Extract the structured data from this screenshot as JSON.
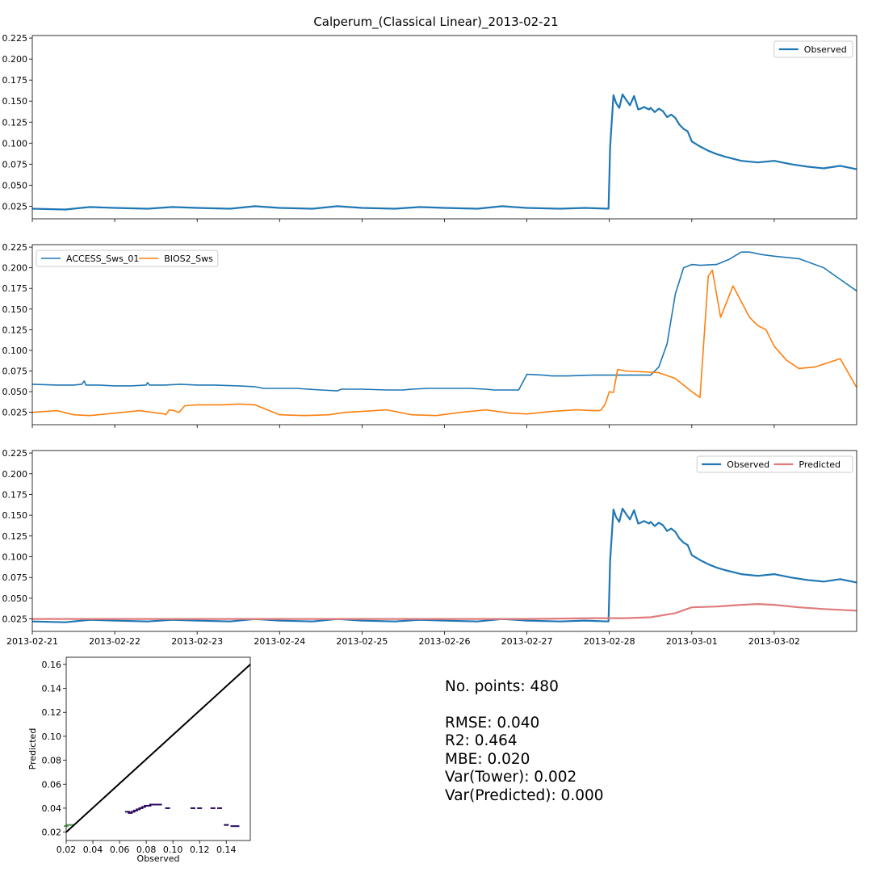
{
  "figure": {
    "title": "Calperum_(Classical Linear)_2013-02-21"
  },
  "colors": {
    "observed": "#1f77b4",
    "access": "#1f77b4",
    "bios2": "#ff7f0e",
    "predicted": "#e07b7b",
    "one_to_one": "#000000",
    "scatter": "#2a0a5e"
  },
  "stats": {
    "n_points": "No. points: 480",
    "rmse": "RMSE: 0.040",
    "r2": "R2: 0.464",
    "mbe": "MBE: 0.020",
    "var_tower": "Var(Tower): 0.002",
    "var_predicted": "Var(Predicted): 0.000"
  },
  "chart_data": [
    {
      "type": "line",
      "ylim": [
        0.01,
        0.228
      ],
      "yticks": [
        "0.025",
        "0.050",
        "0.075",
        "0.100",
        "0.125",
        "0.150",
        "0.175",
        "0.200",
        "0.225"
      ],
      "x_range_days": [
        0,
        10
      ],
      "legend": "top-right",
      "series": [
        {
          "name": "Observed",
          "color_key": "observed",
          "x": [
            0,
            0.4,
            0.7,
            1.0,
            1.4,
            1.7,
            2.0,
            2.4,
            2.7,
            3.0,
            3.4,
            3.7,
            4.0,
            4.4,
            4.7,
            5.0,
            5.4,
            5.7,
            6.0,
            6.4,
            6.7,
            6.99,
            7.01,
            7.05,
            7.08,
            7.12,
            7.16,
            7.2,
            7.25,
            7.3,
            7.35,
            7.38,
            7.42,
            7.48,
            7.5,
            7.55,
            7.6,
            7.65,
            7.7,
            7.75,
            7.8,
            7.85,
            7.9,
            7.95,
            8.0,
            8.05,
            8.1,
            8.2,
            8.3,
            8.4,
            8.6,
            8.8,
            9.0,
            9.2,
            9.4,
            9.6,
            9.8,
            10.0
          ],
          "y": [
            0.022,
            0.021,
            0.024,
            0.023,
            0.022,
            0.024,
            0.023,
            0.022,
            0.025,
            0.023,
            0.022,
            0.025,
            0.023,
            0.022,
            0.024,
            0.023,
            0.022,
            0.025,
            0.023,
            0.022,
            0.023,
            0.022,
            0.096,
            0.157,
            0.148,
            0.142,
            0.158,
            0.152,
            0.145,
            0.156,
            0.14,
            0.141,
            0.143,
            0.14,
            0.142,
            0.137,
            0.141,
            0.138,
            0.131,
            0.134,
            0.13,
            0.122,
            0.117,
            0.114,
            0.102,
            0.099,
            0.096,
            0.091,
            0.087,
            0.084,
            0.079,
            0.077,
            0.079,
            0.075,
            0.072,
            0.07,
            0.073,
            0.069
          ]
        }
      ]
    },
    {
      "type": "line",
      "ylim": [
        0.01,
        0.228
      ],
      "yticks": [
        "0.025",
        "0.050",
        "0.075",
        "0.100",
        "0.125",
        "0.150",
        "0.175",
        "0.200",
        "0.225"
      ],
      "x_range_days": [
        0,
        10
      ],
      "legend": "top-left",
      "series": [
        {
          "name": "ACCESS_Sws_01",
          "color_key": "access",
          "x": [
            0,
            0.3,
            0.5,
            0.6,
            0.63,
            0.65,
            0.8,
            1.0,
            1.2,
            1.38,
            1.4,
            1.42,
            1.6,
            1.8,
            2.0,
            2.2,
            2.5,
            2.7,
            2.8,
            2.85,
            3.0,
            3.2,
            3.5,
            3.7,
            3.75,
            4.0,
            4.3,
            4.5,
            4.6,
            4.8,
            5.0,
            5.3,
            5.5,
            5.6,
            5.9,
            6.0,
            6.2,
            6.3,
            6.5,
            6.8,
            6.92,
            7.2,
            7.35,
            7.5,
            7.6,
            7.7,
            7.8,
            7.9,
            8.0,
            8.1,
            8.3,
            8.45,
            8.6,
            8.7,
            8.85,
            9.0,
            9.3,
            9.6,
            9.8,
            10.0
          ],
          "y": [
            0.059,
            0.058,
            0.058,
            0.059,
            0.063,
            0.058,
            0.058,
            0.057,
            0.057,
            0.058,
            0.061,
            0.058,
            0.058,
            0.059,
            0.058,
            0.058,
            0.057,
            0.056,
            0.054,
            0.054,
            0.054,
            0.054,
            0.052,
            0.051,
            0.053,
            0.053,
            0.052,
            0.052,
            0.053,
            0.054,
            0.054,
            0.054,
            0.053,
            0.052,
            0.052,
            0.071,
            0.07,
            0.069,
            0.069,
            0.07,
            0.07,
            0.07,
            0.07,
            0.07,
            0.08,
            0.108,
            0.168,
            0.2,
            0.204,
            0.203,
            0.204,
            0.21,
            0.219,
            0.219,
            0.216,
            0.214,
            0.211,
            0.2,
            0.186,
            0.172
          ]
        },
        {
          "name": "BIOS2_Sws",
          "color_key": "bios2",
          "x": [
            0,
            0.3,
            0.5,
            0.7,
            1.0,
            1.3,
            1.6,
            1.62,
            1.66,
            1.72,
            1.78,
            1.85,
            2.0,
            2.3,
            2.5,
            2.7,
            3.0,
            3.3,
            3.6,
            3.8,
            4.0,
            4.3,
            4.6,
            4.9,
            5.2,
            5.5,
            5.8,
            6.0,
            6.3,
            6.6,
            6.8,
            6.88,
            6.9,
            6.95,
            7.0,
            7.05,
            7.1,
            7.2,
            7.4,
            7.6,
            7.8,
            8.0,
            8.1,
            8.2,
            8.25,
            8.35,
            8.5,
            8.7,
            8.8,
            8.9,
            9.0,
            9.15,
            9.3,
            9.5,
            9.8,
            10.0
          ],
          "y": [
            0.025,
            0.027,
            0.022,
            0.021,
            0.024,
            0.027,
            0.023,
            0.022,
            0.028,
            0.027,
            0.025,
            0.033,
            0.034,
            0.034,
            0.035,
            0.034,
            0.022,
            0.021,
            0.022,
            0.025,
            0.026,
            0.028,
            0.022,
            0.021,
            0.025,
            0.028,
            0.024,
            0.023,
            0.026,
            0.028,
            0.027,
            0.027,
            0.028,
            0.035,
            0.05,
            0.049,
            0.077,
            0.075,
            0.074,
            0.073,
            0.066,
            0.05,
            0.043,
            0.19,
            0.197,
            0.14,
            0.178,
            0.14,
            0.13,
            0.125,
            0.105,
            0.088,
            0.078,
            0.08,
            0.09,
            0.055
          ]
        }
      ]
    },
    {
      "type": "line",
      "ylim": [
        0.01,
        0.228
      ],
      "yticks": [
        "0.025",
        "0.050",
        "0.075",
        "0.100",
        "0.125",
        "0.150",
        "0.175",
        "0.200",
        "0.225"
      ],
      "x_range_days": [
        0,
        10
      ],
      "xticks": [
        "2013-02-21",
        "2013-02-22",
        "2013-02-23",
        "2013-02-24",
        "2013-02-25",
        "2013-02-26",
        "2013-02-27",
        "2013-02-28",
        "2013-03-01",
        "2013-03-02"
      ],
      "legend": "top-right",
      "series": [
        {
          "name": "Observed",
          "color_key": "observed",
          "x": [
            0,
            0.4,
            0.7,
            1.0,
            1.4,
            1.7,
            2.0,
            2.4,
            2.7,
            3.0,
            3.4,
            3.7,
            4.0,
            4.4,
            4.7,
            5.0,
            5.4,
            5.7,
            6.0,
            6.4,
            6.7,
            6.99,
            7.01,
            7.05,
            7.08,
            7.12,
            7.16,
            7.2,
            7.25,
            7.3,
            7.35,
            7.38,
            7.42,
            7.48,
            7.5,
            7.55,
            7.6,
            7.65,
            7.7,
            7.75,
            7.8,
            7.85,
            7.9,
            7.95,
            8.0,
            8.05,
            8.1,
            8.2,
            8.3,
            8.4,
            8.6,
            8.8,
            9.0,
            9.2,
            9.4,
            9.6,
            9.8,
            10.0
          ],
          "y": [
            0.022,
            0.021,
            0.024,
            0.023,
            0.022,
            0.024,
            0.023,
            0.022,
            0.025,
            0.023,
            0.022,
            0.025,
            0.023,
            0.022,
            0.024,
            0.023,
            0.022,
            0.025,
            0.023,
            0.022,
            0.023,
            0.022,
            0.096,
            0.157,
            0.148,
            0.142,
            0.158,
            0.152,
            0.145,
            0.156,
            0.14,
            0.141,
            0.143,
            0.14,
            0.142,
            0.137,
            0.141,
            0.138,
            0.131,
            0.134,
            0.13,
            0.122,
            0.117,
            0.114,
            0.102,
            0.099,
            0.096,
            0.091,
            0.087,
            0.084,
            0.079,
            0.077,
            0.079,
            0.075,
            0.072,
            0.07,
            0.073,
            0.069
          ]
        },
        {
          "name": "Predicted",
          "color_key": "predicted",
          "x": [
            0,
            1,
            2,
            3,
            4,
            5,
            6,
            6.8,
            7.2,
            7.5,
            7.8,
            8.0,
            8.3,
            8.6,
            8.8,
            9.0,
            9.3,
            9.6,
            10.0
          ],
          "y": [
            0.025,
            0.025,
            0.025,
            0.025,
            0.025,
            0.025,
            0.025,
            0.026,
            0.026,
            0.027,
            0.032,
            0.039,
            0.04,
            0.042,
            0.043,
            0.042,
            0.039,
            0.037,
            0.035
          ]
        }
      ]
    },
    {
      "type": "scatter",
      "xlabel": "Observed",
      "ylabel": "Predicted",
      "xlim": [
        0.02,
        0.158
      ],
      "ylim": [
        0.013,
        0.166
      ],
      "xticks": [
        "0.02",
        "0.04",
        "0.06",
        "0.08",
        "0.10",
        "0.12",
        "0.14"
      ],
      "yticks": [
        "0.02",
        "0.04",
        "0.06",
        "0.08",
        "0.10",
        "0.12",
        "0.14",
        "0.16"
      ],
      "one_to_one": [
        [
          0.02,
          0.02
        ],
        [
          0.158,
          0.16
        ]
      ],
      "points": {
        "x": [
          0.02,
          0.022,
          0.024,
          0.066,
          0.068,
          0.07,
          0.072,
          0.074,
          0.076,
          0.078,
          0.08,
          0.082,
          0.084,
          0.086,
          0.088,
          0.09,
          0.096,
          0.115,
          0.12,
          0.13,
          0.135,
          0.14,
          0.145,
          0.148
        ],
        "y": [
          0.025,
          0.026,
          0.026,
          0.037,
          0.036,
          0.037,
          0.038,
          0.039,
          0.04,
          0.041,
          0.042,
          0.042,
          0.043,
          0.043,
          0.043,
          0.043,
          0.04,
          0.04,
          0.04,
          0.04,
          0.04,
          0.026,
          0.025,
          0.025
        ]
      }
    }
  ]
}
